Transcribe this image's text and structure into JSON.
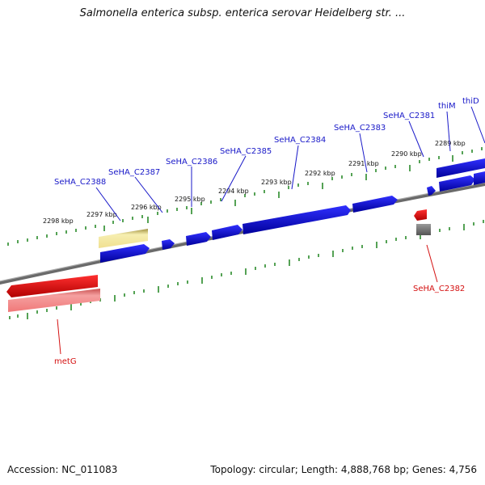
{
  "title": "Salmonella enterica subsp. enterica serovar Heidelberg str. ...",
  "footer": {
    "accession": "Accession: NC_011083",
    "summary": "Topology: circular; Length: 4,888,768 bp; Genes: 4,756"
  },
  "colors": {
    "forward_cds": "#0a0adc",
    "reverse_cds": "#e01010",
    "reverse_cds_shadow": "#f08a8a",
    "forward_highlight": "#f2e6a0",
    "backbone": "#808080",
    "tick": "#2a8a2a",
    "label_forward": "#1818c8",
    "label_reverse": "#d41010",
    "unknown_feature": "#707070"
  },
  "tick_labels": [
    "2298 kbp",
    "2297 kbp",
    "2296 kbp",
    "2295 kbp",
    "2294 kbp",
    "2293 kbp",
    "2292 kbp",
    "2291 kbp",
    "2290 kbp",
    "2289 kbp"
  ],
  "forward_gene_labels": [
    "SeHA_C2388",
    "SeHA_C2387",
    "SeHA_C2386",
    "SeHA_C2385",
    "SeHA_C2384",
    "SeHA_C2383",
    "SeHA_C2381",
    "thiM",
    "thiD"
  ],
  "reverse_gene_labels": [
    "SeHA_C2382",
    "metG"
  ]
}
